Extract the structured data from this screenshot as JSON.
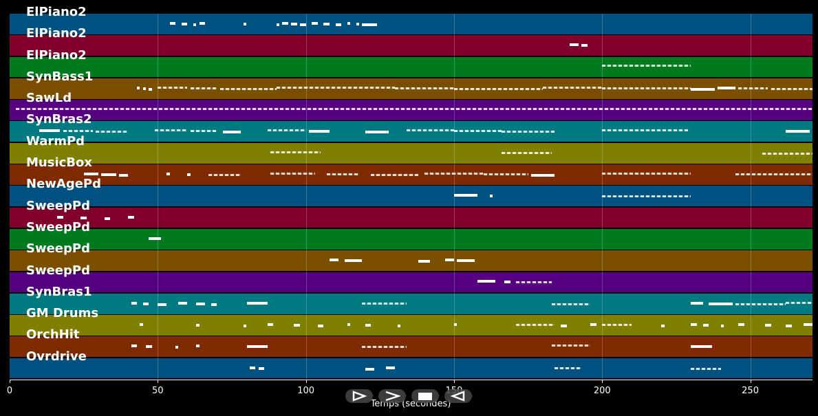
{
  "tracks": [
    {
      "name": "ElPiano2",
      "color": "#005080"
    },
    {
      "name": "ElPiano2",
      "color": "#80002a"
    },
    {
      "name": "ElPiano2",
      "color": "#007a1e"
    },
    {
      "name": "SynBass1",
      "color": "#7a5000"
    },
    {
      "name": "SawLd",
      "color": "#55007f"
    },
    {
      "name": "SynBras2",
      "color": "#007a80"
    },
    {
      "name": "WarmPd",
      "color": "#7f7f00"
    },
    {
      "name": "MusicBox",
      "color": "#7f2a00"
    },
    {
      "name": "NewAgePd",
      "color": "#005080"
    },
    {
      "name": "SweepPd",
      "color": "#80002a"
    },
    {
      "name": "SweepPd",
      "color": "#007a1e"
    },
    {
      "name": "SweepPd",
      "color": "#7a5000"
    },
    {
      "name": "SweepPd",
      "color": "#55007f"
    },
    {
      "name": "SynBras1",
      "color": "#007a80"
    },
    {
      "name": "GM Drums",
      "color": "#7f7f00"
    },
    {
      "name": "OrchHit",
      "color": "#7f2a00"
    },
    {
      "name": "Ovrdrive",
      "color": "#005080"
    }
  ],
  "axis": {
    "xmin": 0,
    "xmax": 271,
    "ticks": [
      0,
      50,
      100,
      150,
      200,
      250
    ],
    "tick_labels": [
      "0",
      "50",
      "100",
      "150",
      "200",
      "250"
    ],
    "xlabel": "Temps (secondes)"
  },
  "controls": [
    {
      "name": "play-button",
      "icon": "play-icon"
    },
    {
      "name": "forward-button",
      "icon": "chevron-right-icon"
    },
    {
      "name": "stop-button",
      "icon": "stop-icon"
    },
    {
      "name": "rewind-button",
      "icon": "rewind-icon"
    }
  ],
  "notes": [
    {
      "lane": 0,
      "segments": [
        [
          54,
          56
        ],
        [
          58,
          60
        ],
        [
          62,
          63
        ],
        [
          64,
          66
        ],
        [
          79,
          80
        ],
        [
          90,
          91
        ],
        [
          92,
          94
        ],
        [
          95,
          97
        ],
        [
          98,
          100
        ],
        [
          102,
          104
        ],
        [
          106,
          108
        ],
        [
          110,
          112
        ],
        [
          114,
          115
        ],
        [
          117,
          118
        ],
        [
          119,
          124
        ]
      ]
    },
    {
      "lane": 1,
      "segments": [
        [
          189,
          192
        ],
        [
          193,
          195
        ]
      ]
    },
    {
      "lane": 2,
      "segments": [
        [
          200,
          230
        ]
      ]
    },
    {
      "lane": 3,
      "segments": [
        [
          43,
          44
        ],
        [
          45,
          46
        ],
        [
          47,
          48
        ],
        [
          50,
          60
        ],
        [
          61,
          70
        ],
        [
          71,
          90
        ],
        [
          90,
          130
        ],
        [
          130,
          150
        ],
        [
          150,
          180
        ],
        [
          180,
          200
        ],
        [
          200,
          230
        ],
        [
          230,
          238
        ],
        [
          239,
          245
        ],
        [
          246,
          256
        ],
        [
          257,
          271
        ]
      ]
    },
    {
      "lane": 4,
      "segments": [
        [
          2,
          271
        ]
      ]
    },
    {
      "lane": 5,
      "segments": [
        [
          10,
          17
        ],
        [
          18,
          28
        ],
        [
          29,
          40
        ],
        [
          49,
          60
        ],
        [
          61,
          70
        ],
        [
          72,
          78
        ],
        [
          87,
          100
        ],
        [
          101,
          108
        ],
        [
          120,
          128
        ],
        [
          134,
          150
        ],
        [
          150,
          166
        ],
        [
          166,
          184
        ],
        [
          200,
          229
        ],
        [
          262,
          270
        ]
      ]
    },
    {
      "lane": 6,
      "segments": [
        [
          88,
          105
        ],
        [
          166,
          183
        ],
        [
          254,
          271
        ]
      ]
    },
    {
      "lane": 7,
      "segments": [
        [
          25,
          30
        ],
        [
          31,
          36
        ],
        [
          37,
          40
        ],
        [
          53,
          54
        ],
        [
          60,
          61
        ],
        [
          67,
          78
        ],
        [
          88,
          103
        ],
        [
          107,
          118
        ],
        [
          122,
          138
        ],
        [
          140,
          160
        ],
        [
          160,
          175
        ],
        [
          176,
          184
        ],
        [
          200,
          230
        ],
        [
          245,
          271
        ]
      ]
    },
    {
      "lane": 8,
      "segments": [
        [
          150,
          158
        ],
        [
          162,
          163
        ],
        [
          200,
          230
        ]
      ]
    },
    {
      "lane": 9,
      "segments": [
        [
          16,
          18
        ],
        [
          24,
          26
        ],
        [
          32,
          34
        ],
        [
          40,
          42
        ]
      ]
    },
    {
      "lane": 10,
      "segments": [
        [
          47,
          51
        ]
      ]
    },
    {
      "lane": 11,
      "segments": [
        [
          108,
          111
        ],
        [
          113,
          119
        ],
        [
          138,
          142
        ],
        [
          147,
          150
        ],
        [
          151,
          157
        ]
      ]
    },
    {
      "lane": 12,
      "segments": [
        [
          158,
          164
        ],
        [
          167,
          169
        ],
        [
          171,
          183
        ]
      ]
    },
    {
      "lane": 13,
      "segments": [
        [
          41,
          43
        ],
        [
          45,
          47
        ],
        [
          50,
          53
        ],
        [
          57,
          60
        ],
        [
          63,
          66
        ],
        [
          68,
          70
        ],
        [
          80,
          87
        ],
        [
          119,
          134
        ],
        [
          183,
          196
        ],
        [
          230,
          234
        ],
        [
          236,
          244
        ],
        [
          245,
          262
        ],
        [
          262,
          271
        ]
      ]
    },
    {
      "lane": 14,
      "segments": [
        [
          44,
          45
        ],
        [
          63,
          64
        ],
        [
          79,
          80
        ],
        [
          87,
          89
        ],
        [
          96,
          98
        ],
        [
          104,
          106
        ],
        [
          114,
          115
        ],
        [
          120,
          122
        ],
        [
          131,
          132
        ],
        [
          150,
          151
        ],
        [
          171,
          184
        ],
        [
          186,
          188
        ],
        [
          196,
          198
        ],
        [
          200,
          210
        ],
        [
          220,
          221
        ],
        [
          230,
          232
        ],
        [
          234,
          236
        ],
        [
          240,
          241
        ],
        [
          246,
          248
        ],
        [
          255,
          257
        ],
        [
          262,
          264
        ],
        [
          268,
          271
        ]
      ]
    },
    {
      "lane": 15,
      "segments": [
        [
          41,
          43
        ],
        [
          46,
          48
        ],
        [
          56,
          57
        ],
        [
          63,
          64
        ],
        [
          80,
          87
        ],
        [
          119,
          134
        ],
        [
          183,
          196
        ],
        [
          230,
          237
        ]
      ]
    },
    {
      "lane": 16,
      "segments": [
        [
          81,
          83
        ],
        [
          84,
          86
        ],
        [
          120,
          123
        ],
        [
          127,
          130
        ],
        [
          184,
          193
        ],
        [
          230,
          240
        ]
      ]
    }
  ]
}
